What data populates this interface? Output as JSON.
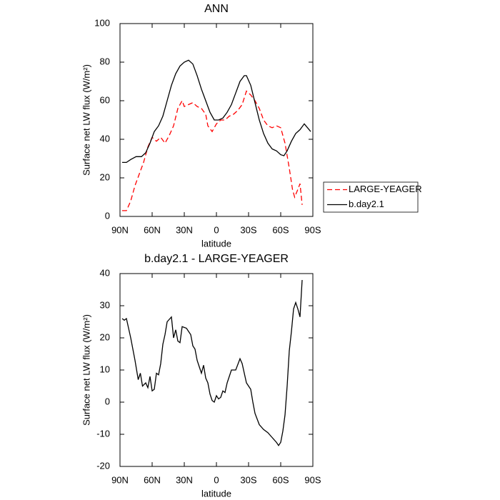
{
  "chart_data": [
    {
      "type": "line",
      "title": "ANN",
      "x_label": "latitude",
      "y_label": "Surface net LW flux (W/m²)",
      "xlim": [
        90,
        -90
      ],
      "ylim": [
        0,
        100
      ],
      "xticks": [
        {
          "value": 90,
          "label": "90N"
        },
        {
          "value": 60,
          "label": "60N"
        },
        {
          "value": 30,
          "label": "30N"
        },
        0,
        {
          "value": -30,
          "label": "30S"
        },
        {
          "value": -60,
          "label": "60S"
        },
        {
          "value": -90,
          "label": "90S"
        }
      ],
      "yticks": [
        0,
        20,
        40,
        60,
        80,
        100
      ],
      "legend": "right",
      "series": [
        {
          "name": "LARGE-YEAGER",
          "color": "#ff0000",
          "dash": true,
          "x": [
            88,
            84,
            80,
            76,
            72,
            68,
            64,
            60,
            56,
            52,
            48,
            44,
            40,
            36,
            32,
            30,
            26,
            22,
            18,
            14,
            10,
            8,
            4,
            0,
            -4,
            -8,
            -12,
            -16,
            -20,
            -24,
            -28,
            -32,
            -36,
            -40,
            -44,
            -48,
            -52,
            -56,
            -60,
            -64,
            -68,
            -71,
            -73,
            -76,
            -78,
            -80
          ],
          "values": [
            3,
            3,
            8,
            16,
            22,
            28,
            36,
            41,
            39,
            41,
            38,
            42,
            47,
            56,
            60,
            57,
            58,
            59,
            57,
            56,
            53,
            47,
            44,
            48,
            50,
            50,
            52,
            53,
            55,
            58,
            65,
            63,
            60,
            56,
            50,
            47,
            46,
            47,
            46,
            38,
            25,
            14,
            10,
            14,
            17,
            6
          ]
        },
        {
          "name": "b.day2.1",
          "color": "#000000",
          "dash": false,
          "x": [
            88,
            84,
            80,
            75,
            70,
            66,
            62,
            58,
            54,
            50,
            46,
            42,
            38,
            34,
            30,
            26,
            22,
            18,
            14,
            10,
            6,
            2,
            -2,
            -6,
            -10,
            -14,
            -18,
            -22,
            -26,
            -28,
            -32,
            -36,
            -40,
            -44,
            -48,
            -52,
            -56,
            -60,
            -63,
            -66,
            -70,
            -74,
            -78,
            -82,
            -85,
            -88
          ],
          "values": [
            28,
            28,
            29.5,
            31,
            31,
            33,
            38,
            44,
            47,
            52,
            60,
            68,
            74,
            78,
            80,
            81,
            79,
            73,
            66,
            60,
            54,
            50,
            50,
            51,
            54,
            58,
            64,
            70,
            73,
            73,
            68,
            59,
            50,
            43,
            38,
            35,
            34,
            32,
            31.5,
            34,
            39,
            43,
            45,
            48,
            46,
            44
          ]
        }
      ]
    },
    {
      "type": "line",
      "title": "b.day2.1 - LARGE-YEAGER",
      "x_label": "latitude",
      "y_label": "Surface net LW flux (W/m²)",
      "xlim": [
        90,
        -90
      ],
      "ylim": [
        -20,
        40
      ],
      "xticks": [
        {
          "value": 90,
          "label": "90N"
        },
        {
          "value": 60,
          "label": "60N"
        },
        {
          "value": 30,
          "label": "30N"
        },
        0,
        {
          "value": -30,
          "label": "30S"
        },
        {
          "value": -60,
          "label": "60S"
        },
        {
          "value": -90,
          "label": "90S"
        }
      ],
      "yticks": [
        -20,
        -10,
        0,
        10,
        20,
        30,
        40
      ],
      "color": "#000000",
      "x": [
        88,
        86,
        84,
        80,
        76,
        73,
        71,
        69,
        66,
        64,
        62,
        60,
        58,
        56,
        54,
        52,
        50,
        48,
        46,
        42,
        40,
        38,
        36,
        34,
        32,
        28,
        24,
        22,
        20,
        18,
        16,
        14,
        12,
        10,
        8,
        6,
        4,
        2,
        0,
        -2,
        -4,
        -6,
        -8,
        -10,
        -14,
        -18,
        -22,
        -24,
        -28,
        -32,
        -34,
        -36,
        -40,
        -44,
        -48,
        -52,
        -56,
        -58,
        -60,
        -62,
        -64,
        -66,
        -68,
        -70,
        -72,
        -74,
        -76,
        -78,
        -80
      ],
      "values": [
        26,
        25.5,
        26,
        20,
        13,
        7,
        9,
        5,
        6,
        4.5,
        8,
        3.5,
        4,
        9,
        8.5,
        12,
        18,
        21,
        25,
        26.5,
        20,
        22.5,
        19,
        18.5,
        23.5,
        23,
        21,
        17.5,
        16.5,
        13,
        11,
        9,
        11.5,
        7.5,
        6,
        2.5,
        0.5,
        0,
        2,
        1,
        1.5,
        3.5,
        3,
        6,
        10,
        10,
        13.5,
        12,
        6,
        4,
        0,
        -3.5,
        -7,
        -8.5,
        -9.5,
        -11,
        -12.5,
        -13.5,
        -12.5,
        -9,
        -4,
        5,
        16,
        22,
        29,
        31,
        29,
        26.5,
        38
      ]
    }
  ]
}
